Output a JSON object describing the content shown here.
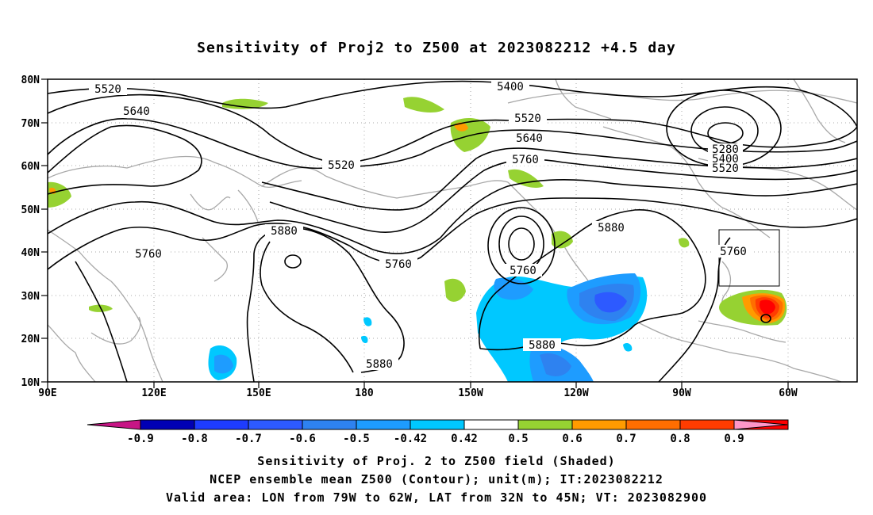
{
  "title": "Sensitivity of Proj2 to Z500 at 2023082212 +4.5 day",
  "lat_labels": [
    "80N",
    "70N",
    "60N",
    "50N",
    "40N",
    "30N",
    "20N",
    "10N"
  ],
  "lon_labels": [
    "90E",
    "120E",
    "150E",
    "180",
    "150W",
    "120W",
    "90W",
    "60W"
  ],
  "contour_labels": [
    "5520",
    "5640",
    "5400",
    "5520",
    "5640",
    "5760",
    "5520",
    "5280",
    "5400",
    "5520",
    "5880",
    "5760",
    "5760",
    "5880",
    "5760",
    "5880",
    "5880",
    "5760"
  ],
  "colorbar_labels": [
    "-0.9",
    "-0.8",
    "-0.7",
    "-0.6",
    "-0.5",
    "-0.42",
    "0.42",
    "0.5",
    "0.6",
    "0.7",
    "0.8",
    "0.9"
  ],
  "colorbar_colors": {
    "neg_extreme": "#c71585",
    "bins": [
      "#0000b4",
      "#1e3cff",
      "#2d5aff",
      "#2e82f0",
      "#1e9cff",
      "#00c8ff",
      "#ffffff",
      "#96d232",
      "#ff9b00",
      "#ff6e00",
      "#ff3c00",
      "#ff0000"
    ],
    "pos_extreme": "#ff96c8"
  },
  "footer": {
    "line1": "Sensitivity of Proj. 2 to Z500 field (Shaded)",
    "line2": "NCEP ensemble mean Z500 (Contour); unit(m); IT:2023082212",
    "line3": "Valid area: LON from 79W to 62W, LAT from 32N to 45N; VT: 2023082900"
  }
}
